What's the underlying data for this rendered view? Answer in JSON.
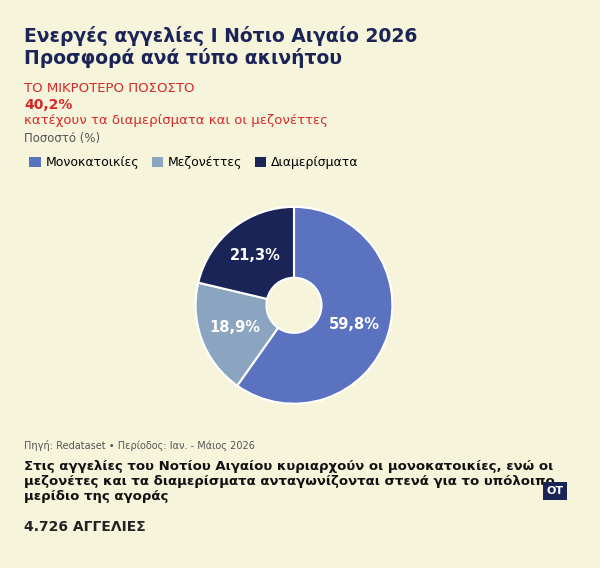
{
  "chart_data": {
    "type": "pie",
    "title": "Ενεργές αγγελίες I Νότιο Αιγαίο 2026",
    "subtitle": "Προσφορά ανά τύπο ακινήτου",
    "highlight": {
      "heading": "ΤΟ ΜΙΚΡΟΤΕΡΟ ΠΟΣΟΣΤΟ",
      "value_label": "40,2%",
      "text": "κατέχουν τα διαμερίσματα και οι μεζονέττες"
    },
    "unit_label": "Ποσοστό (%)",
    "categories": [
      "Μονοκατοικίες",
      "Μεζονέττες",
      "Διαμερίσματα"
    ],
    "values": [
      59.8,
      18.9,
      21.3
    ],
    "value_labels": [
      "59,8%",
      "18,9%",
      "21,3%"
    ],
    "colors": [
      "#5b72c0",
      "#8ba4c0",
      "#1b2457"
    ],
    "data_labels": true,
    "legend": "upper left",
    "source": "Πηγή: Redataset • Περίοδος: Ιαν. - Μάιος 2026",
    "caption": "Στις αγγελίες του Νοτίου Αιγαίου κυριαρχούν οι μονοκατοικίες, ενώ οι μεζονέτες και τα διαμερίσματα ανταγωνίζονται στενά για το υπόλοιπο μερίδιο της αγοράς",
    "footer": "4.726 ΑΓΓΕΛΙΕΣ",
    "logo": "OT"
  }
}
